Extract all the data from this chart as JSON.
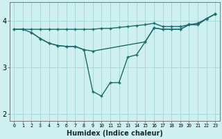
{
  "xlabel": "Humidex (Indice chaleur)",
  "bg_color": "#cff0f0",
  "grid_color": "#a8d8d8",
  "line_color": "#1a6b6b",
  "line1_y": [
    3.82,
    3.82,
    3.82,
    3.82,
    3.82,
    3.82,
    3.82,
    3.82,
    3.82,
    3.82,
    3.84,
    3.84,
    3.86,
    3.88,
    3.9,
    3.92,
    3.95,
    3.88,
    3.88,
    3.88,
    3.92,
    3.95,
    4.05,
    4.15
  ],
  "line2_x": [
    0,
    1,
    2,
    3,
    4,
    5,
    6,
    7,
    8,
    9,
    15,
    16,
    17,
    18,
    19,
    20,
    21,
    22,
    23
  ],
  "line2_y": [
    3.82,
    3.82,
    3.75,
    3.62,
    3.52,
    3.47,
    3.45,
    3.45,
    3.38,
    3.35,
    3.55,
    3.85,
    3.82,
    3.82,
    3.82,
    3.92,
    3.92,
    4.05,
    4.15
  ],
  "line3_x": [
    2,
    3,
    4,
    5,
    6,
    7,
    8,
    9,
    10,
    11,
    12,
    13,
    14,
    15,
    16,
    17,
    18,
    19,
    20,
    21,
    22,
    23
  ],
  "line3_y": [
    3.75,
    3.62,
    3.52,
    3.47,
    3.45,
    3.45,
    3.38,
    2.48,
    2.38,
    2.67,
    2.67,
    3.22,
    3.27,
    3.55,
    3.85,
    3.82,
    3.82,
    3.82,
    3.92,
    3.92,
    4.05,
    4.15
  ],
  "ylim": [
    1.85,
    4.4
  ],
  "xlim": [
    -0.5,
    23.5
  ],
  "yticks": [
    2,
    3,
    4
  ],
  "xticks": [
    0,
    1,
    2,
    3,
    4,
    5,
    6,
    7,
    8,
    9,
    10,
    11,
    12,
    13,
    14,
    15,
    16,
    17,
    18,
    19,
    20,
    21,
    22,
    23
  ]
}
